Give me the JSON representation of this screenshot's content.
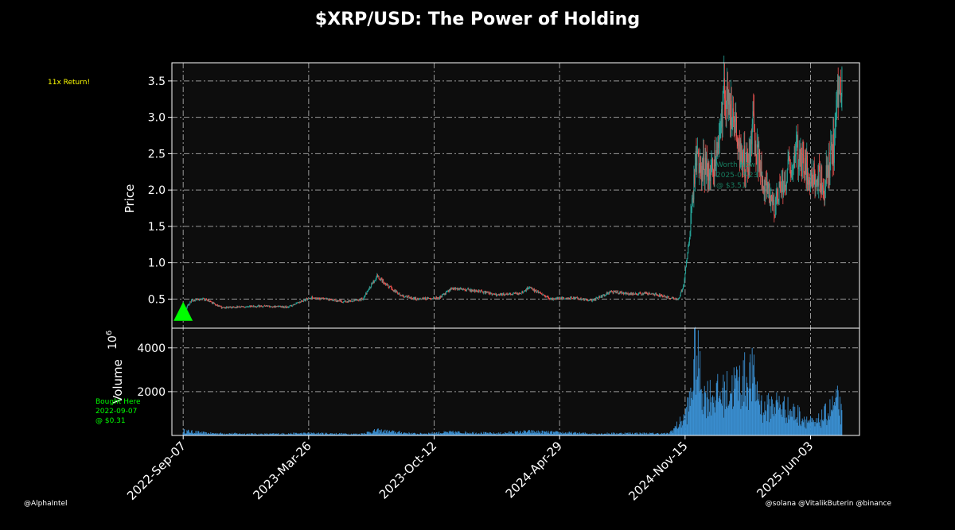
{
  "title": "$XRP/USD: The Power of Holding",
  "annotations": {
    "return_note": "11x Return!",
    "bought_here": [
      "Bought Here",
      "2022-09-07",
      "@ $0.31"
    ],
    "worth_now": [
      "Worth Now",
      "2025-07-23",
      "@ $3.51"
    ]
  },
  "footer": {
    "left": "@AlphaIntel",
    "right": "@solana @VitalikButerin @binance"
  },
  "colors": {
    "background": "#000000",
    "plot_bg": "#0d0d0d",
    "grid": "#999999",
    "up": "#26a69a",
    "down": "#ef5350",
    "volume": "#3a8fd1",
    "buy_marker": "#00ff00",
    "return_note": "#ffff00"
  },
  "chart_data": {
    "type": "candlestick",
    "title": "$XRP/USD: The Power of Holding",
    "price_panel": {
      "ylabel": "Price",
      "ylim": [
        0.1,
        3.75
      ],
      "yticks": [
        "0.5",
        "1.0",
        "1.5",
        "2.0",
        "2.5",
        "3.0",
        "3.5"
      ]
    },
    "volume_panel": {
      "ylabel": "Volume",
      "yscale_label": "10^6",
      "ylim": [
        0,
        4900
      ],
      "yticks": [
        "2000",
        "4000"
      ]
    },
    "xlim": [
      "2022-08-20",
      "2025-08-20"
    ],
    "xticks": [
      "2022-Sep-07",
      "2023-Mar-26",
      "2023-Oct-12",
      "2024-Apr-29",
      "2024-Nov-15",
      "2025-Jun-03"
    ],
    "grid": true,
    "close_series": [
      [
        "2022-09-07",
        0.31
      ],
      [
        "2022-09-20",
        0.48
      ],
      [
        "2022-10-10",
        0.5
      ],
      [
        "2022-11-08",
        0.38
      ],
      [
        "2022-12-15",
        0.4
      ],
      [
        "2023-01-15",
        0.4
      ],
      [
        "2023-02-20",
        0.39
      ],
      [
        "2023-03-29",
        0.52
      ],
      [
        "2023-04-20",
        0.5
      ],
      [
        "2023-05-20",
        0.46
      ],
      [
        "2023-06-20",
        0.5
      ],
      [
        "2023-07-13",
        0.82
      ],
      [
        "2023-07-25",
        0.72
      ],
      [
        "2023-08-20",
        0.55
      ],
      [
        "2023-09-15",
        0.5
      ],
      [
        "2023-10-20",
        0.52
      ],
      [
        "2023-11-10",
        0.65
      ],
      [
        "2023-12-15",
        0.62
      ],
      [
        "2024-01-20",
        0.56
      ],
      [
        "2024-02-28",
        0.58
      ],
      [
        "2024-03-11",
        0.66
      ],
      [
        "2024-04-15",
        0.5
      ],
      [
        "2024-05-20",
        0.52
      ],
      [
        "2024-06-20",
        0.48
      ],
      [
        "2024-07-20",
        0.6
      ],
      [
        "2024-08-20",
        0.57
      ],
      [
        "2024-09-20",
        0.58
      ],
      [
        "2024-10-20",
        0.52
      ],
      [
        "2024-11-05",
        0.5
      ],
      [
        "2024-11-13",
        0.7
      ],
      [
        "2024-11-23",
        1.45
      ],
      [
        "2024-12-02",
        2.4
      ],
      [
        "2024-12-10",
        2.3
      ],
      [
        "2024-12-20",
        2.3
      ],
      [
        "2025-01-05",
        2.4
      ],
      [
        "2025-01-16",
        3.3
      ],
      [
        "2025-01-30",
        3.0
      ],
      [
        "2025-02-10",
        2.5
      ],
      [
        "2025-02-25",
        2.3
      ],
      [
        "2025-03-02",
        2.9
      ],
      [
        "2025-03-15",
        2.3
      ],
      [
        "2025-04-07",
        1.75
      ],
      [
        "2025-04-25",
        2.25
      ],
      [
        "2025-05-12",
        2.55
      ],
      [
        "2025-05-25",
        2.3
      ],
      [
        "2025-06-10",
        2.2
      ],
      [
        "2025-06-25",
        2.1
      ],
      [
        "2025-07-10",
        2.6
      ],
      [
        "2025-07-18",
        3.55
      ],
      [
        "2025-07-23",
        3.51
      ]
    ],
    "volume_series": [
      [
        "2022-09-07",
        250
      ],
      [
        "2022-10-15",
        120
      ],
      [
        "2023-01-15",
        80
      ],
      [
        "2023-03-29",
        120
      ],
      [
        "2023-06-15",
        80
      ],
      [
        "2023-07-13",
        260
      ],
      [
        "2023-09-15",
        90
      ],
      [
        "2023-11-10",
        180
      ],
      [
        "2024-01-20",
        110
      ],
      [
        "2024-03-11",
        210
      ],
      [
        "2024-06-20",
        100
      ],
      [
        "2024-08-20",
        120
      ],
      [
        "2024-10-20",
        100
      ],
      [
        "2024-11-13",
        900
      ],
      [
        "2024-11-23",
        1900
      ],
      [
        "2024-12-02",
        4600
      ],
      [
        "2024-12-15",
        2200
      ],
      [
        "2025-01-16",
        2300
      ],
      [
        "2025-02-03",
        2800
      ],
      [
        "2025-03-02",
        3300
      ],
      [
        "2025-03-20",
        1400
      ],
      [
        "2025-04-07",
        1800
      ],
      [
        "2025-05-12",
        1200
      ],
      [
        "2025-06-10",
        600
      ],
      [
        "2025-07-18",
        1900
      ],
      [
        "2025-07-23",
        1000
      ]
    ],
    "markers": [
      {
        "type": "buy",
        "date": "2022-09-07",
        "price": 0.31
      }
    ]
  }
}
